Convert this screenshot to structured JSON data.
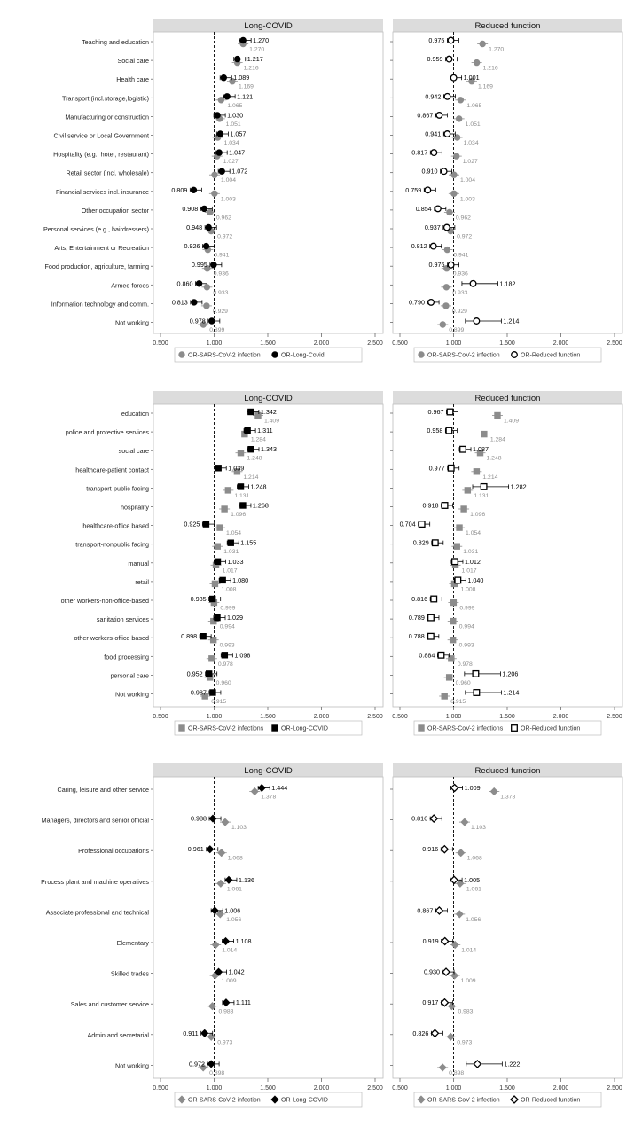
{
  "chart_data": [
    {
      "type": "forest",
      "facet_titles": [
        "Long-COVID",
        "Reduced function"
      ],
      "xlim": [
        0.5,
        2.5
      ],
      "x_ticks": [
        "0.500",
        "1.000",
        "1.500",
        "2.000",
        "2.500"
      ],
      "reference_line": 1.0,
      "grid": false,
      "categories": [
        "Teaching and education",
        "Social care",
        "Health care",
        "Transport (incl.storage,logistic)",
        "Manufacturing or construction",
        "Civil service or Local Government",
        "Hospitality (e.g., hotel, restaurant)",
        "Retail sector (incl. wholesale)",
        "Financial services incl. insurance",
        "Other occupation sector",
        "Personal services (e.g., hairdressers)",
        "Arts, Entertainment or Recreation",
        "Food production, agriculture, farming",
        "Armed forces",
        "Information technology and comm.",
        "Not working"
      ],
      "marker": "circle",
      "sars_values": [
        "1.270",
        "1.216",
        "1.169",
        "1.065",
        "1.051",
        "1.034",
        "1.027",
        "1.004",
        "1.003",
        "0.962",
        "0.972",
        "0.941",
        "0.936",
        "0.933",
        "0.929",
        "0.899"
      ],
      "long_covid_values": [
        "1.270",
        "1.217",
        "1.089",
        "1.121",
        "1.030",
        "1.057",
        "1.047",
        "1.072",
        "0.809",
        "0.908",
        "0.948",
        "0.926",
        "0.995",
        "0.860",
        "0.813",
        "0.978"
      ],
      "reduced_function_values": [
        "0.975",
        "0.959",
        "1.001",
        "0.942",
        "0.867",
        "0.941",
        "0.817",
        "0.910",
        "0.759",
        "0.854",
        "0.937",
        "0.812",
        "0.976",
        "1.182",
        "0.790",
        "1.214"
      ],
      "legend_left": [
        "OR-SARS-CoV-2 infection",
        "OR-Long-Covid"
      ],
      "legend_right": [
        "OR-SARS-CoV-2 infection",
        "OR-Reduced function"
      ],
      "legend_position": "bottom"
    },
    {
      "type": "forest",
      "facet_titles": [
        "Long-COVID",
        "Reduced function"
      ],
      "xlim": [
        0.5,
        2.5
      ],
      "x_ticks": [
        "0.500",
        "1.000",
        "1.500",
        "2.000",
        "2.500"
      ],
      "reference_line": 1.0,
      "grid": false,
      "categories": [
        "education",
        "police and protective services",
        "social care",
        "healthcare-patient contact",
        "transport-public facing",
        "hospitality",
        "healthcare-office based",
        "transport-nonpublic facing",
        "manual",
        "retail",
        "other workers-non-office-based",
        "sanitation services",
        "other workers-office based",
        "food processing",
        "personal care",
        "Not working"
      ],
      "marker": "square",
      "sars_values": [
        "1.409",
        "1.284",
        "1.248",
        "1.214",
        "1.131",
        "1.096",
        "1.054",
        "1.031",
        "1.017",
        "1.008",
        "0.999",
        "0.994",
        "0.993",
        "0.978",
        "0.960",
        "0.915"
      ],
      "long_covid_values": [
        "1.342",
        "1.311",
        "1.343",
        "1.039",
        "1.248",
        "1.268",
        "0.925",
        "1.155",
        "1.033",
        "1.080",
        "0.985",
        "1.029",
        "0.898",
        "1.098",
        "0.952",
        "0.987"
      ],
      "reduced_function_values": [
        "0.967",
        "0.958",
        "1.087",
        "0.977",
        "1.282",
        "0.918",
        "0.704",
        "0.829",
        "1.012",
        "1.040",
        "0.816",
        "0.789",
        "0.788",
        "0.884",
        "1.206",
        "1.214"
      ],
      "legend_left": [
        "OR-SARS-CoV-2 infections",
        "OR-Long-COVID"
      ],
      "legend_right": [
        "OR-SARS-CoV-2 infections",
        "OR-Reduced function"
      ],
      "legend_position": "bottom"
    },
    {
      "type": "forest",
      "facet_titles": [
        "Long-COVID",
        "Reduced function"
      ],
      "xlim": [
        0.5,
        2.5
      ],
      "x_ticks": [
        "0.500",
        "1.000",
        "1.500",
        "2.000",
        "2.500"
      ],
      "reference_line": 1.0,
      "grid": false,
      "categories": [
        "Caring, leisure and other service",
        "Managers, directors and senior official",
        "Professional occupations",
        "Process plant and machine operatives",
        "Associate professional and technical",
        "Elementary",
        "Skilled trades",
        "Sales and customer service",
        "Admin and secretarial",
        "Not working"
      ],
      "marker": "diamond",
      "sars_values": [
        "1.378",
        "1.103",
        "1.068",
        "1.061",
        "1.056",
        "1.014",
        "1.009",
        "0.983",
        "0.973",
        "0.898"
      ],
      "long_covid_values": [
        "1.444",
        "0.988",
        "0.961",
        "1.136",
        "1.006",
        "1.108",
        "1.042",
        "1.111",
        "0.911",
        "0.972"
      ],
      "reduced_function_values": [
        "1.009",
        "0.816",
        "0.916",
        "1.005",
        "0.867",
        "0.919",
        "0.930",
        "0.917",
        "0.826",
        "1.222"
      ],
      "legend_left": [
        "OR-SARS-CoV-2 infection",
        "OR-Long-COVID"
      ],
      "legend_right": [
        "OR-SARS-CoV-2 infection",
        "OR-Reduced function"
      ],
      "legend_position": "bottom"
    }
  ],
  "colors": {
    "sars_marker": "#8c8c8c",
    "outcome_marker": "#000000",
    "facet_header_bg": "#dcdcdc",
    "reference_line": "#000000"
  }
}
